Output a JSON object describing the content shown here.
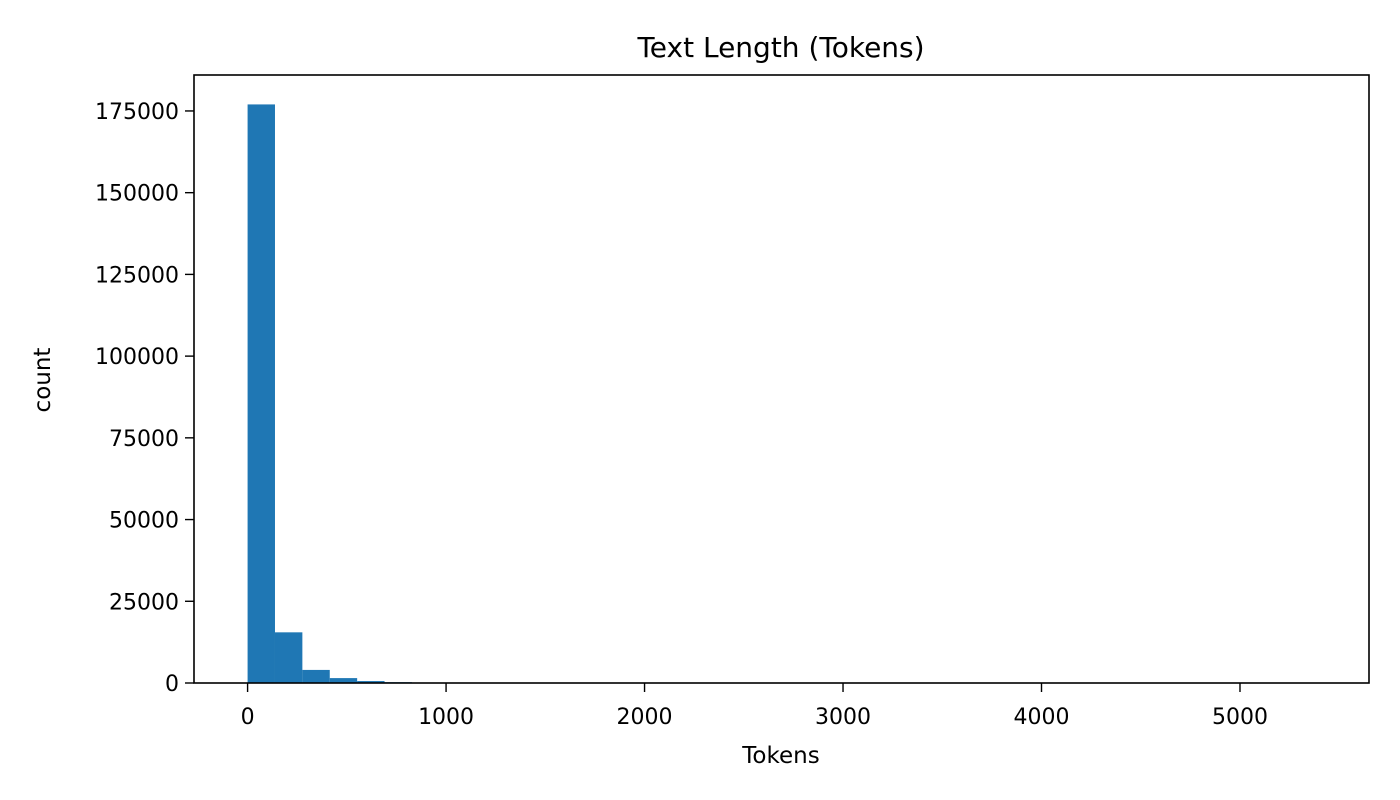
{
  "chart_data": {
    "type": "bar",
    "subtype": "histogram",
    "title": "Text Length (Tokens)",
    "xlabel": "Tokens",
    "ylabel": "count",
    "xlim": [
      -270,
      5650
    ],
    "ylim": [
      0,
      186000
    ],
    "grid": false,
    "bar_color": "#1f77b4",
    "xticks": [
      0,
      1000,
      2000,
      3000,
      4000,
      5000
    ],
    "xtick_labels": [
      "0",
      "1000",
      "2000",
      "3000",
      "4000",
      "5000"
    ],
    "yticks": [
      0,
      25000,
      50000,
      75000,
      100000,
      125000,
      150000,
      175000
    ],
    "ytick_labels": [
      "0",
      "25000",
      "50000",
      "75000",
      "100000",
      "125000",
      "150000",
      "175000"
    ],
    "bins": [
      {
        "x0": 0,
        "x1": 138,
        "count": 177000
      },
      {
        "x0": 138,
        "x1": 276,
        "count": 15500
      },
      {
        "x0": 276,
        "x1": 414,
        "count": 4000
      },
      {
        "x0": 414,
        "x1": 552,
        "count": 1500
      },
      {
        "x0": 552,
        "x1": 690,
        "count": 600
      },
      {
        "x0": 690,
        "x1": 828,
        "count": 250
      },
      {
        "x0": 828,
        "x1": 966,
        "count": 120
      },
      {
        "x0": 966,
        "x1": 1104,
        "count": 60
      },
      {
        "x0": 1104,
        "x1": 1242,
        "count": 30
      },
      {
        "x0": 1242,
        "x1": 1380,
        "count": 15
      },
      {
        "x0": 1380,
        "x1": 1518,
        "count": 8
      }
    ]
  }
}
